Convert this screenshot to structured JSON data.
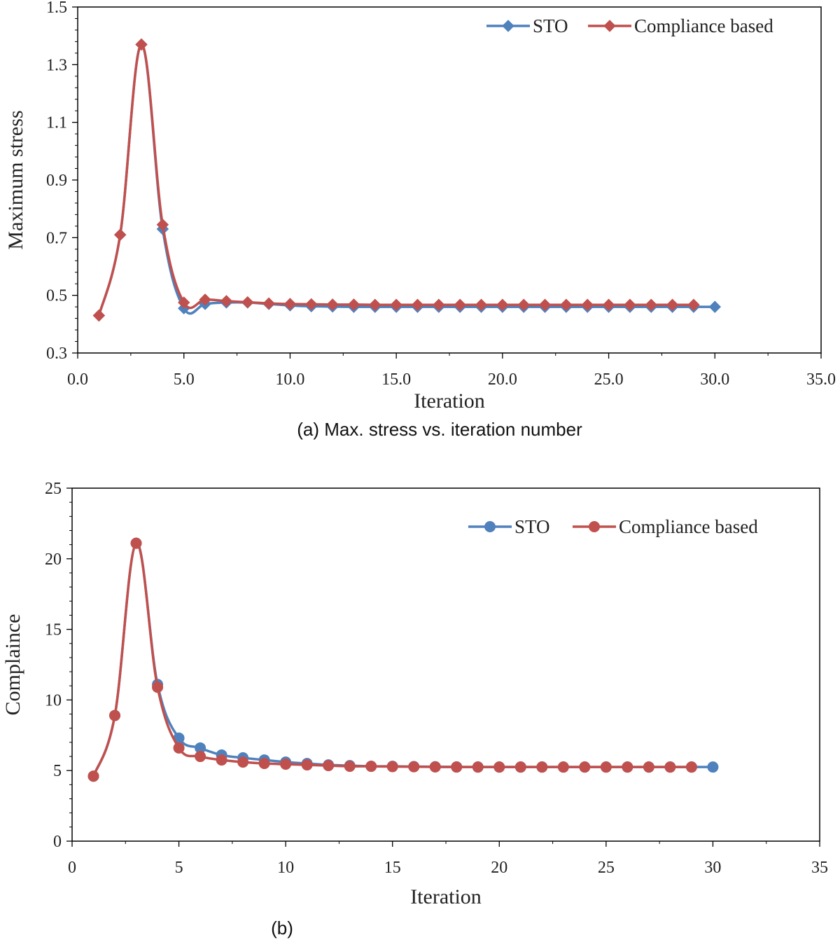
{
  "chart_data": [
    {
      "type": "line",
      "caption": "(a)  Max. stress vs. iteration number",
      "xlabel": "Iteration",
      "ylabel": "Maximum stress",
      "xlim": [
        0,
        35
      ],
      "ylim": [
        0.3,
        1.5
      ],
      "xticks": [
        "0.0",
        "5.0",
        "10.0",
        "15.0",
        "20.0",
        "25.0",
        "30.0",
        "35.0"
      ],
      "xtick_values": [
        0,
        5,
        10,
        15,
        20,
        25,
        30,
        35
      ],
      "yticks": [
        "0.3",
        "0.5",
        "0.7",
        "0.9",
        "1.1",
        "1.3",
        "1.5"
      ],
      "ytick_values": [
        0.3,
        0.5,
        0.7,
        0.9,
        1.1,
        1.3,
        1.5
      ],
      "grid": false,
      "legend_position": "top-right",
      "marker": "diamond",
      "series": [
        {
          "name": "STO",
          "color": "#4f81bd",
          "x": [
            1,
            2,
            3,
            4,
            5,
            6,
            7,
            8,
            9,
            10,
            11,
            12,
            13,
            14,
            15,
            16,
            17,
            18,
            19,
            20,
            21,
            22,
            23,
            24,
            25,
            26,
            27,
            28,
            29,
            30
          ],
          "y": [
            0.43,
            0.71,
            1.37,
            0.73,
            0.455,
            0.47,
            0.475,
            0.475,
            0.47,
            0.465,
            0.462,
            0.461,
            0.46,
            0.46,
            0.46,
            0.46,
            0.46,
            0.46,
            0.46,
            0.46,
            0.46,
            0.46,
            0.46,
            0.46,
            0.46,
            0.46,
            0.46,
            0.46,
            0.46,
            0.46
          ]
        },
        {
          "name": "Compliance based",
          "color": "#c0504d",
          "x": [
            1,
            2,
            3,
            4,
            5,
            6,
            7,
            8,
            9,
            10,
            11,
            12,
            13,
            14,
            15,
            16,
            17,
            18,
            19,
            20,
            21,
            22,
            23,
            24,
            25,
            26,
            27,
            28,
            29
          ],
          "y": [
            0.43,
            0.71,
            1.37,
            0.745,
            0.475,
            0.485,
            0.48,
            0.476,
            0.472,
            0.47,
            0.469,
            0.468,
            0.468,
            0.467,
            0.467,
            0.467,
            0.467,
            0.467,
            0.467,
            0.467,
            0.467,
            0.467,
            0.467,
            0.467,
            0.467,
            0.467,
            0.467,
            0.467,
            0.467
          ]
        }
      ]
    },
    {
      "type": "line",
      "caption": "(b)",
      "xlabel": "Iteration",
      "ylabel": "Complaince",
      "xlim": [
        0,
        35
      ],
      "ylim": [
        0,
        25
      ],
      "xticks": [
        "0",
        "5",
        "10",
        "15",
        "20",
        "25",
        "30",
        "35"
      ],
      "xtick_values": [
        0,
        5,
        10,
        15,
        20,
        25,
        30,
        35
      ],
      "yticks": [
        "0",
        "5",
        "10",
        "15",
        "20",
        "25"
      ],
      "ytick_values": [
        0,
        5,
        10,
        15,
        20,
        25
      ],
      "grid": false,
      "legend_position": "top-right",
      "marker": "circle",
      "series": [
        {
          "name": "STO",
          "color": "#4f81bd",
          "x": [
            1,
            2,
            3,
            4,
            5,
            6,
            7,
            8,
            9,
            10,
            11,
            12,
            13,
            14,
            15,
            16,
            17,
            18,
            19,
            20,
            21,
            22,
            23,
            24,
            25,
            26,
            27,
            28,
            29,
            30
          ],
          "y": [
            4.6,
            8.9,
            21.1,
            11.1,
            7.3,
            6.6,
            6.1,
            5.9,
            5.75,
            5.6,
            5.5,
            5.4,
            5.35,
            5.3,
            5.3,
            5.28,
            5.27,
            5.26,
            5.25,
            5.25,
            5.25,
            5.25,
            5.25,
            5.25,
            5.25,
            5.25,
            5.25,
            5.25,
            5.25,
            5.25
          ]
        },
        {
          "name": "Compliance based",
          "color": "#c0504d",
          "x": [
            1,
            2,
            3,
            4,
            5,
            6,
            7,
            8,
            9,
            10,
            11,
            12,
            13,
            14,
            15,
            16,
            17,
            18,
            19,
            20,
            21,
            22,
            23,
            24,
            25,
            26,
            27,
            28,
            29
          ],
          "y": [
            4.6,
            8.9,
            21.1,
            10.9,
            6.6,
            6.0,
            5.75,
            5.6,
            5.5,
            5.45,
            5.4,
            5.35,
            5.3,
            5.3,
            5.28,
            5.27,
            5.26,
            5.25,
            5.25,
            5.25,
            5.25,
            5.25,
            5.25,
            5.25,
            5.25,
            5.25,
            5.25,
            5.25,
            5.25
          ]
        }
      ]
    }
  ]
}
